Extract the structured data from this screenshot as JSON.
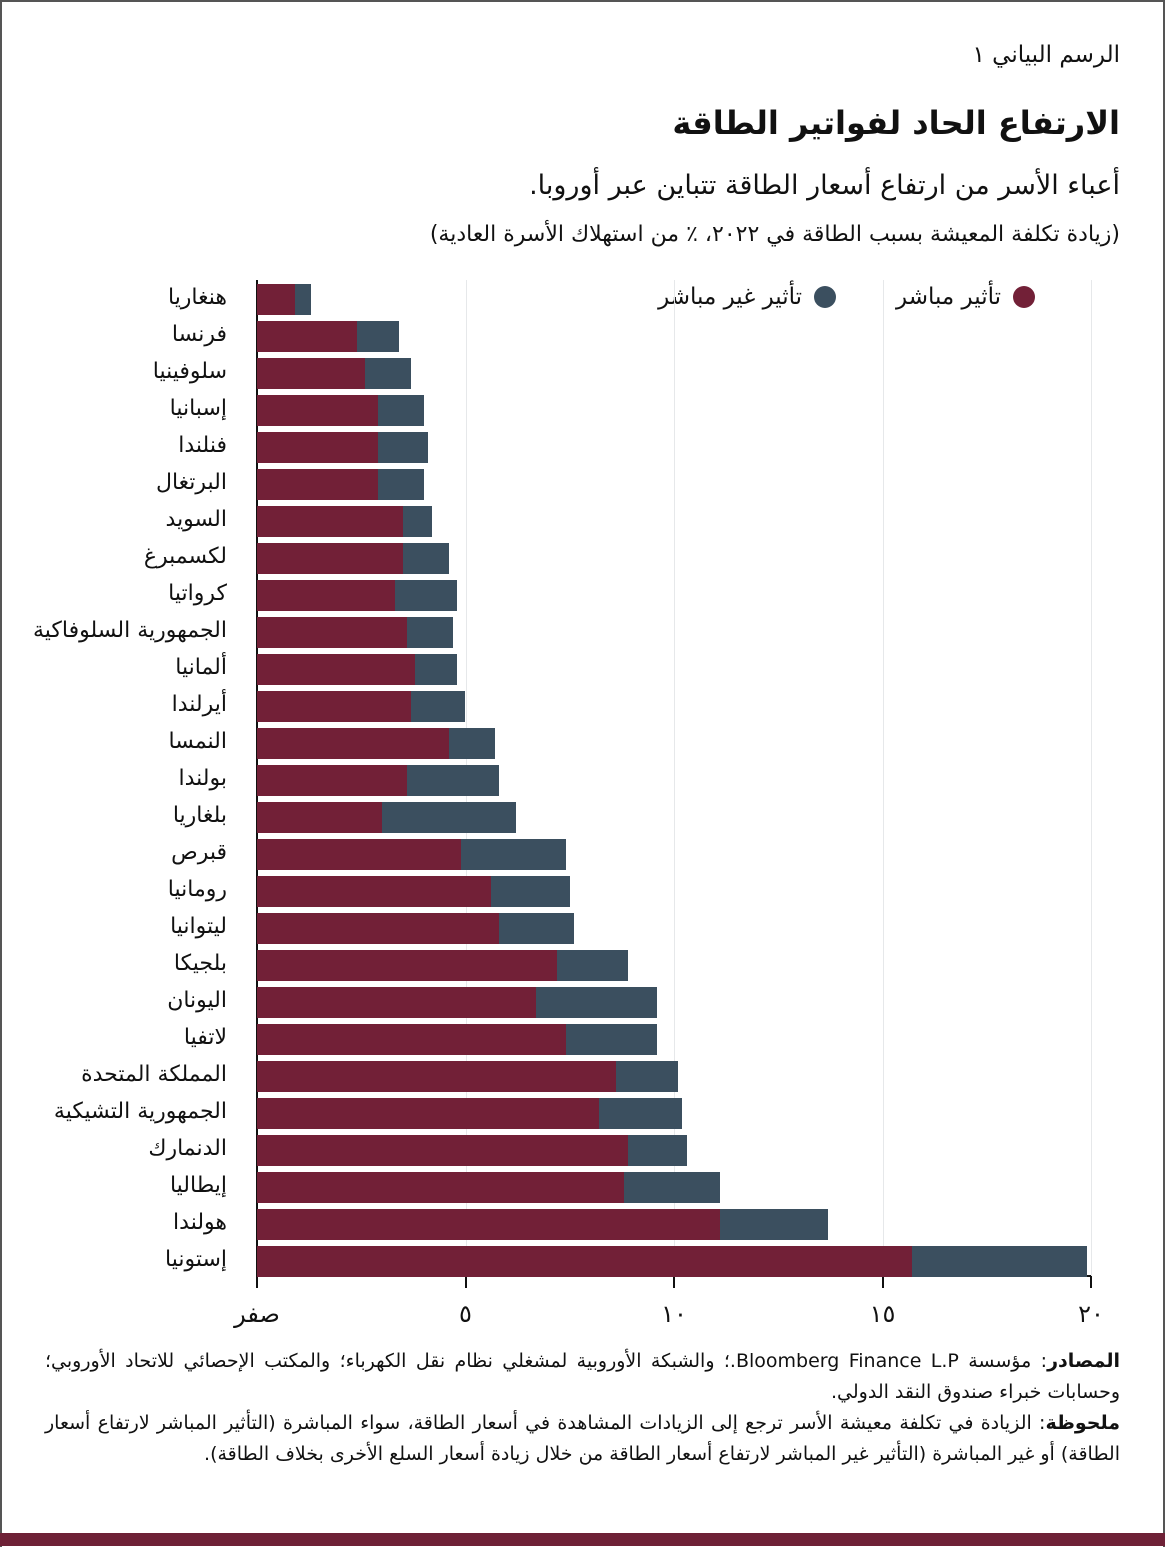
{
  "header": {
    "figure_label": "الرسم البياني ١",
    "title": "الارتفاع الحاد لفواتير الطاقة",
    "subtitle": "أعباء الأسر من ارتفاع أسعار الطاقة تتباين عبر أوروبا.",
    "units": "(زيادة تكلفة المعيشة بسبب الطاقة في ٢٠٢٢، ٪ من استهلاك الأسرة العادية)"
  },
  "legend": {
    "direct_label": "تأثير مباشر",
    "indirect_label": "تأثير غير مباشر"
  },
  "colors": {
    "direct": "#722037",
    "indirect": "#3b4f5f",
    "bottom_bar": "#6e2136",
    "gridline": "#e6e8ea"
  },
  "chart_data": {
    "type": "bar",
    "orientation": "horizontal",
    "stacked": true,
    "title": "الارتفاع الحاد لفواتير الطاقة",
    "subtitle": "أعباء الأسر من ارتفاع أسعار الطاقة تتباين عبر أوروبا.",
    "xlabel": "(زيادة تكلفة المعيشة بسبب الطاقة في ٢٠٢٢، ٪ من استهلاك الأسرة العادية)",
    "ylabel": "",
    "xlim": [
      0,
      20
    ],
    "xticks": [
      0,
      5,
      10,
      15,
      20
    ],
    "xtick_labels": [
      "صفر",
      "٥",
      "١٠",
      "١٥",
      "٢٠"
    ],
    "grid": true,
    "legend_position": "top-right",
    "categories": [
      "هنغاريا",
      "فرنسا",
      "سلوفينيا",
      "إسبانيا",
      "فنلندا",
      "البرتغال",
      "السويد",
      "لكسمبرغ",
      "كرواتيا",
      "الجمهورية السلوفاكية",
      "ألمانيا",
      "أيرلندا",
      "النمسا",
      "بولندا",
      "بلغاريا",
      "قبرص",
      "رومانيا",
      "ليتوانيا",
      "بلجيكا",
      "اليونان",
      "لاتفيا",
      "المملكة المتحدة",
      "الجمهورية التشيكية",
      "الدنمارك",
      "إيطاليا",
      "هولندا",
      "إستونيا"
    ],
    "series": [
      {
        "name": "تأثير مباشر",
        "color": "#722037",
        "values": [
          0.9,
          2.4,
          2.6,
          2.9,
          2.9,
          2.9,
          3.5,
          3.5,
          3.3,
          3.6,
          3.8,
          3.7,
          4.6,
          3.6,
          3.0,
          4.9,
          5.6,
          5.8,
          7.2,
          6.7,
          7.4,
          8.6,
          8.2,
          8.9,
          8.8,
          11.1,
          15.7
        ]
      },
      {
        "name": "تأثير غير مباشر",
        "color": "#3b4f5f",
        "values": [
          0.4,
          1.0,
          1.1,
          1.1,
          1.2,
          1.1,
          0.7,
          1.1,
          1.5,
          1.1,
          1.0,
          1.3,
          1.1,
          2.2,
          3.2,
          2.5,
          1.9,
          1.8,
          1.7,
          2.9,
          2.2,
          1.5,
          2.0,
          1.4,
          2.3,
          2.6,
          4.2
        ]
      }
    ]
  },
  "notes": {
    "sources_label": "المصادر",
    "sources_text": ": مؤسسة Bloomberg Finance L.P.؛ والشبكة الأوروبية لمشغلي نظام نقل الكهرباء؛ والمكتب الإحصائي للاتحاد الأوروبي؛ وحسابات خبراء صندوق النقد الدولي.",
    "note_label": "ملحوظة",
    "note_text": ": الزيادة في تكلفة معيشة الأسر ترجع إلى الزيادات المشاهدة في أسعار الطاقة، سواء المباشرة (التأثير المباشر لارتفاع أسعار الطاقة) أو غير المباشرة (التأثير غير المباشر لارتفاع أسعار الطاقة من خلال زيادة أسعار السلع الأخرى بخلاف الطاقة)."
  }
}
